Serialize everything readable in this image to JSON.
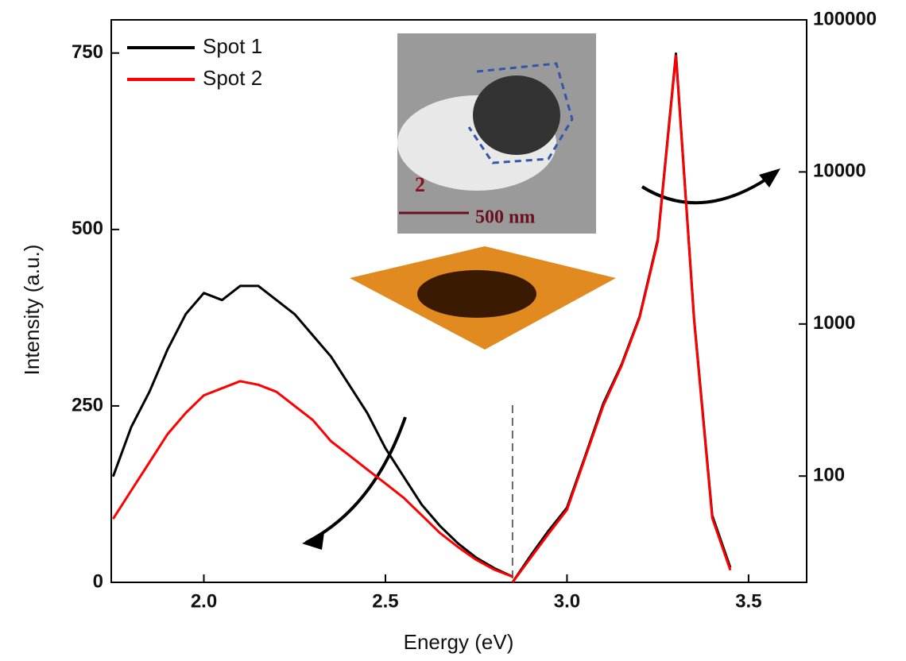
{
  "chart_data": {
    "type": "line",
    "x_label": "Energy (eV)",
    "y_label": "Intensity (a.u.)",
    "xlim": [
      1.745,
      3.66
    ],
    "ylim": [
      0,
      797
    ],
    "y2lim": [
      20,
      100000
    ],
    "y2_log": true,
    "xticks": [
      {
        "value": 2.0,
        "label": "2.0"
      },
      {
        "value": 2.5,
        "label": "2.5"
      },
      {
        "value": 3.0,
        "label": "3.0"
      },
      {
        "value": 3.5,
        "label": "3.5"
      }
    ],
    "yticks": [
      0,
      250,
      500,
      750
    ],
    "y2ticks": [
      100,
      1000,
      10000,
      100000
    ],
    "legend": "upper left",
    "vline_x": 2.85,
    "annotations": [
      "2",
      "500 nm"
    ],
    "x": [
      1.75,
      1.8,
      1.85,
      1.9,
      1.95,
      2.0,
      2.05,
      2.1,
      2.15,
      2.2,
      2.25,
      2.3,
      2.35,
      2.4,
      2.45,
      2.5,
      2.55,
      2.6,
      2.65,
      2.7,
      2.75,
      2.8,
      2.85,
      2.9,
      2.95,
      3.0,
      3.05,
      3.1,
      3.15,
      3.2,
      3.25,
      3.3,
      3.35,
      3.4,
      3.45,
      3.5
    ],
    "series": [
      {
        "name": "Spot 1",
        "color": "#000000",
        "values": [
          150,
          220,
          270,
          330,
          380,
          410,
          400,
          420,
          420,
          400,
          380,
          350,
          320,
          280,
          240,
          190,
          150,
          110,
          80,
          55,
          35,
          20,
          8,
          null,
          null,
          null,
          null,
          null,
          null,
          null,
          null,
          null,
          null,
          null,
          null,
          null
        ]
      },
      {
        "name": "Spot 2",
        "color": "#ff0000",
        "values": [
          90,
          130,
          170,
          210,
          240,
          265,
          275,
          285,
          280,
          270,
          250,
          230,
          200,
          180,
          160,
          140,
          120,
          95,
          70,
          50,
          32,
          18,
          8,
          null,
          null,
          null,
          null,
          null,
          null,
          null,
          null,
          null,
          null,
          null,
          null,
          null
        ]
      },
      {
        "name": "Spot 1",
        "color": "#000000",
        "axis": "y2",
        "values": [
          null,
          null,
          null,
          null,
          null,
          null,
          null,
          null,
          null,
          null,
          null,
          null,
          null,
          null,
          null,
          null,
          null,
          null,
          null,
          null,
          null,
          null,
          20,
          30,
          44,
          62,
          135,
          300,
          540,
          1120,
          3600,
          60000,
          1080,
          55,
          25,
          null
        ]
      },
      {
        "name": "Spot 2",
        "color": "#ff0000",
        "axis": "y2",
        "values": [
          null,
          null,
          null,
          null,
          null,
          null,
          null,
          null,
          null,
          null,
          null,
          null,
          null,
          null,
          null,
          null,
          null,
          null,
          null,
          null,
          null,
          null,
          20,
          29,
          42,
          60,
          132,
          290,
          530,
          1100,
          3500,
          58000,
          1050,
          53,
          24,
          null
        ]
      }
    ]
  }
}
